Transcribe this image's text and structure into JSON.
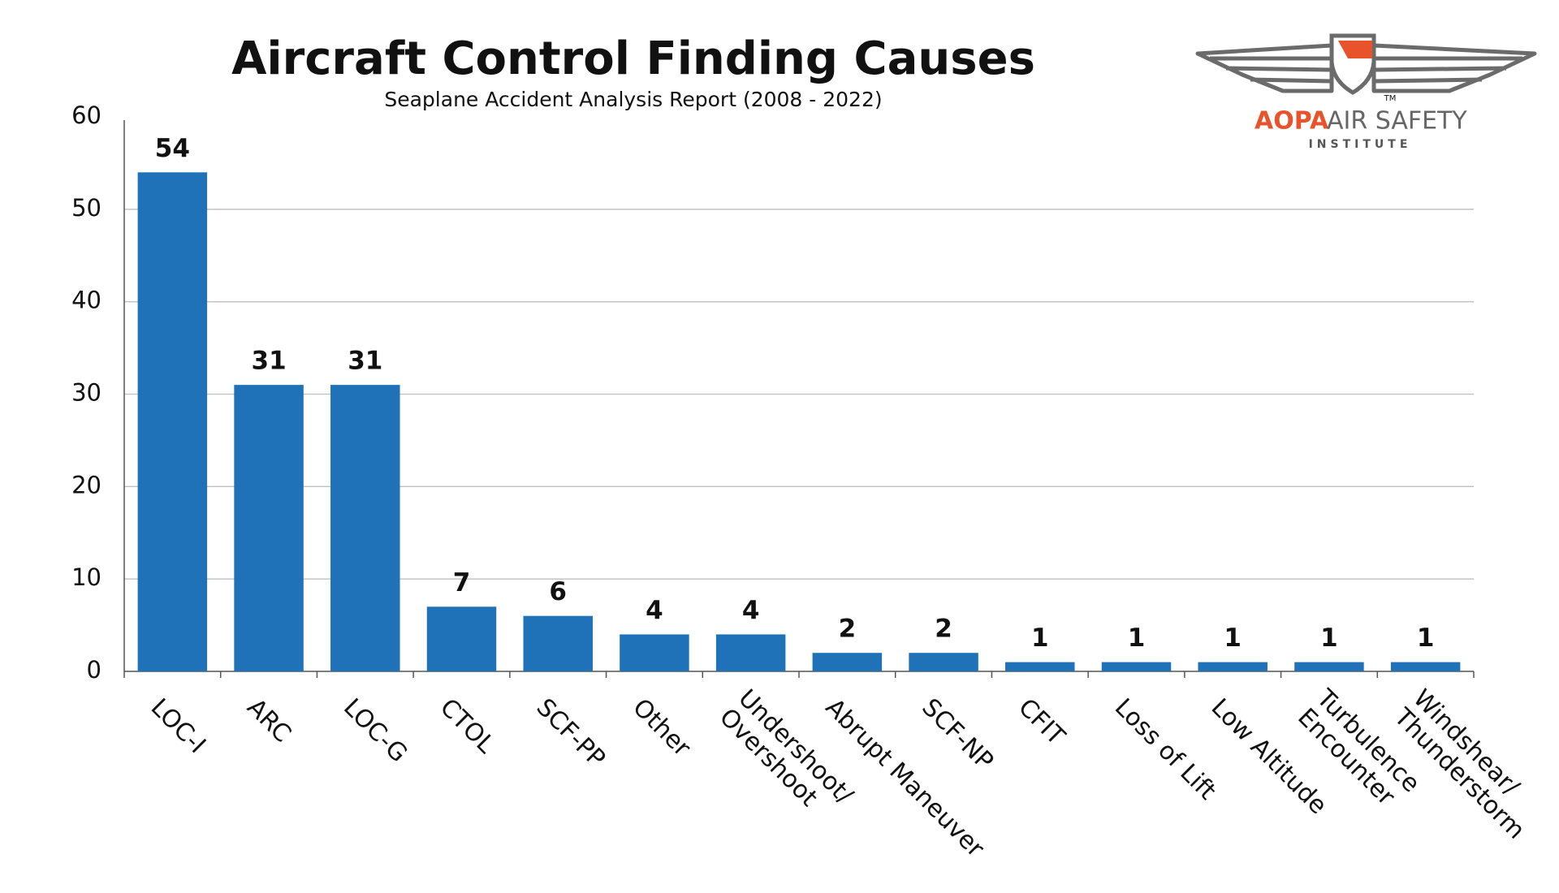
{
  "chart_data": {
    "type": "bar",
    "title": "Aircraft Control Finding Causes",
    "subtitle": "Seaplane Accident Analysis Report (2008 - 2022)",
    "categories": [
      "LOC-I",
      "ARC",
      "LOC-G",
      "CTOL",
      "SCF-PP",
      "Other",
      "Undershoot/\nOvershoot",
      "Abrupt Maneuver",
      "SCF-NP",
      "CFIT",
      "Loss of Lift",
      "Low Altitude",
      "Turbulence\nEncounter",
      "Windshear/\nThunderstorm"
    ],
    "values": [
      54,
      31,
      31,
      7,
      6,
      4,
      4,
      2,
      2,
      1,
      1,
      1,
      1,
      1
    ],
    "color": "#1f72b8",
    "ylim": [
      0,
      60
    ],
    "yticks": [
      0,
      10,
      20,
      30,
      40,
      50,
      60
    ],
    "grid": true
  },
  "logo": {
    "brand": "AOPA",
    "name": "AIR SAFETY",
    "subtitle": "INSTITUTE",
    "mark": "TM"
  }
}
